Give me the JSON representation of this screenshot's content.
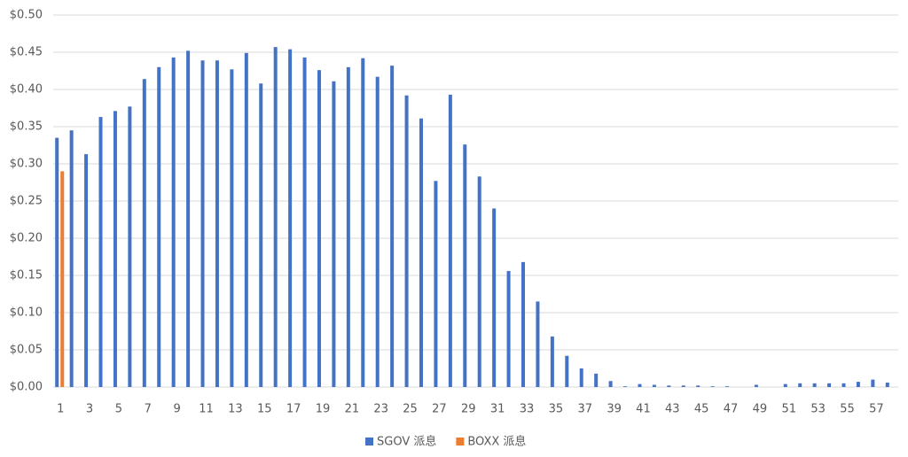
{
  "chart_data": {
    "type": "bar",
    "categories": [
      "1",
      null,
      "3",
      null,
      "5",
      null,
      "7",
      null,
      "9",
      null,
      "11",
      null,
      "13",
      null,
      "15",
      null,
      "17",
      null,
      "19",
      null,
      "21",
      null,
      "23",
      null,
      "25",
      null,
      "27",
      null,
      "29",
      null,
      "31",
      null,
      "33",
      null,
      "35",
      null,
      "37",
      null,
      "39",
      null,
      "41",
      null,
      "43",
      null,
      "45",
      null,
      "47",
      null,
      "49",
      null,
      "51",
      null,
      "53",
      null,
      "55",
      null,
      "57",
      null
    ],
    "series": [
      {
        "name": "SGOV 派息",
        "color": "#4472c4",
        "values": [
          0.335,
          0.345,
          0.313,
          0.363,
          0.371,
          0.377,
          0.414,
          0.43,
          0.443,
          0.452,
          0.439,
          0.439,
          0.427,
          0.449,
          0.408,
          0.457,
          0.454,
          0.443,
          0.426,
          0.411,
          0.43,
          0.442,
          0.417,
          0.432,
          0.392,
          0.361,
          0.277,
          0.393,
          0.326,
          0.283,
          0.24,
          0.156,
          0.168,
          0.115,
          0.068,
          0.042,
          0.025,
          0.018,
          0.008,
          0.001,
          0.004,
          0.003,
          0.002,
          0.002,
          0.002,
          0.001,
          0.001,
          0,
          0.003,
          0,
          0.004,
          0.005,
          0.005,
          0.005,
          0.005,
          0.007,
          0.01,
          0.006
        ]
      },
      {
        "name": "BOXX 派息",
        "color": "#ed7d31",
        "values": [
          0.29,
          null,
          null,
          null,
          null,
          null,
          null,
          null,
          null,
          null,
          null,
          null,
          null,
          null,
          null,
          null,
          null,
          null,
          null,
          null,
          null,
          null,
          null,
          null,
          null,
          null,
          null,
          null,
          null,
          null,
          null,
          null,
          null,
          null,
          null,
          null,
          null,
          null,
          null,
          null,
          null,
          null,
          null,
          null,
          null,
          null,
          null,
          null,
          null,
          null,
          null,
          null,
          null,
          null,
          null,
          null,
          null,
          null
        ]
      }
    ],
    "ylim": [
      0,
      0.5
    ],
    "yticks": [
      {
        "value": 0,
        "label": "$0.00"
      },
      {
        "value": 0.05,
        "label": "$0.05"
      },
      {
        "value": 0.1,
        "label": "$0.10"
      },
      {
        "value": 0.15,
        "label": "$0.15"
      },
      {
        "value": 0.2,
        "label": "$0.20"
      },
      {
        "value": 0.25,
        "label": "$0.25"
      },
      {
        "value": 0.3,
        "label": "$0.30"
      },
      {
        "value": 0.35,
        "label": "$0.35"
      },
      {
        "value": 0.4,
        "label": "$0.40"
      },
      {
        "value": 0.45,
        "label": "$0.45"
      },
      {
        "value": 0.5,
        "label": "$0.50"
      }
    ],
    "grid": true,
    "legend": "bottom"
  }
}
